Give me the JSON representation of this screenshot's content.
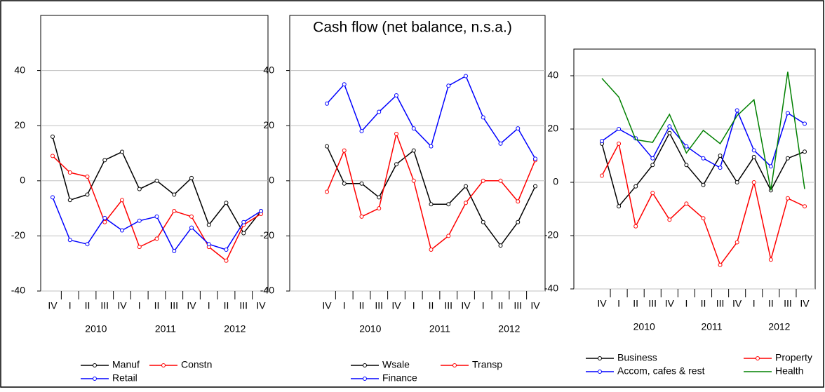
{
  "title": "Cash flow (net balance, n.s.a.)",
  "chart_data": [
    {
      "type": "line",
      "categories": [
        "IV",
        "I",
        "II",
        "III",
        "IV",
        "I",
        "II",
        "III",
        "IV",
        "I",
        "II",
        "III",
        "IV"
      ],
      "year_groups": [
        "2010",
        "2011",
        "2012"
      ],
      "ylim": [
        -40,
        60
      ],
      "yticks": [
        -40,
        -20,
        0,
        20,
        40
      ],
      "grid": true,
      "series": [
        {
          "name": "Manuf",
          "color": "#000000",
          "markers": true,
          "values": [
            16,
            -7,
            -5,
            7.5,
            10.5,
            -3,
            0,
            -5,
            1,
            -16,
            -8,
            -19,
            -11
          ]
        },
        {
          "name": "Constn",
          "color": "#ff0000",
          "markers": true,
          "values": [
            9,
            3,
            1.5,
            -15,
            -7,
            -24,
            -21,
            -11,
            -13,
            -24,
            -29,
            -16,
            -12
          ]
        },
        {
          "name": "Retail",
          "color": "#0000ff",
          "markers": true,
          "values": [
            -6,
            -21.5,
            -23,
            -13.5,
            -18,
            -14.5,
            -13,
            -25.5,
            -17,
            -23,
            -25,
            -15,
            -11
          ]
        }
      ]
    },
    {
      "type": "line",
      "categories": [
        "IV",
        "I",
        "II",
        "III",
        "IV",
        "I",
        "II",
        "III",
        "IV",
        "I",
        "II",
        "III",
        "IV"
      ],
      "year_groups": [
        "2010",
        "2011",
        "2012"
      ],
      "ylim": [
        -40,
        60
      ],
      "yticks": [
        -40,
        -20,
        0,
        20,
        40
      ],
      "grid": true,
      "series": [
        {
          "name": "Wsale",
          "color": "#000000",
          "markers": true,
          "values": [
            12.5,
            -1,
            -1,
            -6,
            6,
            11,
            -8.5,
            -8.5,
            -2,
            -15,
            -23.5,
            -15,
            -2
          ]
        },
        {
          "name": "Transp",
          "color": "#ff0000",
          "markers": true,
          "values": [
            -4,
            11,
            -13,
            -10,
            17,
            0,
            -25,
            -20,
            -8,
            0,
            0,
            -7.5,
            7.5
          ]
        },
        {
          "name": "Finance",
          "color": "#0000ff",
          "markers": true,
          "values": [
            28,
            35,
            18,
            25,
            31,
            19,
            12.5,
            34.5,
            38,
            23,
            13.5,
            19,
            8
          ]
        }
      ]
    },
    {
      "type": "line",
      "categories": [
        "IV",
        "I",
        "II",
        "III",
        "IV",
        "I",
        "II",
        "III",
        "IV",
        "I",
        "II",
        "III",
        "IV"
      ],
      "year_groups": [
        "2010",
        "2011",
        "2012"
      ],
      "ylim": [
        -40,
        50
      ],
      "yticks": [
        -40,
        -20,
        0,
        20,
        40
      ],
      "grid": true,
      "series": [
        {
          "name": "Business",
          "color": "#000000",
          "markers": true,
          "values": [
            14.5,
            -9,
            -1.5,
            6.5,
            18.5,
            6.5,
            -1,
            10,
            0,
            9.5,
            -3,
            9,
            11.5
          ]
        },
        {
          "name": "Property",
          "color": "#ff0000",
          "markers": true,
          "values": [
            2.5,
            14.5,
            -16.5,
            -4,
            -14,
            -8,
            -13.5,
            -31,
            -22.5,
            0,
            -29,
            -6,
            -9
          ]
        },
        {
          "name": "Accom, cafes & rest",
          "color": "#0000ff",
          "markers": true,
          "values": [
            15.5,
            20,
            16.5,
            9,
            21,
            13.5,
            9,
            5.5,
            27,
            12,
            6,
            26,
            22
          ]
        },
        {
          "name": "Health",
          "color": "#008000",
          "markers": false,
          "values": [
            39,
            32,
            16,
            15,
            25.5,
            11,
            19.5,
            14.5,
            25,
            31,
            -3,
            41.5,
            -2.5
          ]
        }
      ]
    }
  ]
}
